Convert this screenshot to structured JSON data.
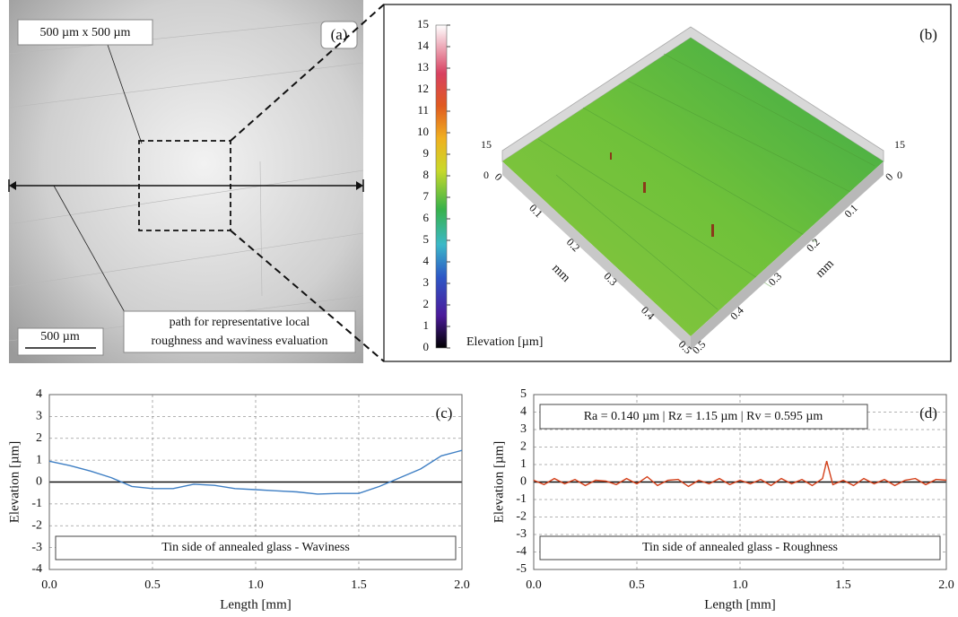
{
  "micrograph": {
    "label": "(a)",
    "area": "500 µm  x 500 µm",
    "path_note": [
      "path for representative local",
      "roughness and waviness evaluation"
    ],
    "scale_bar": "500 µm"
  },
  "surface": {
    "label": "(b)",
    "colorbar": {
      "label": "Elevation [µm]",
      "lim": [
        0,
        15
      ],
      "ticks": [
        0,
        1,
        2,
        3,
        4,
        5,
        6,
        7,
        8,
        9,
        10,
        11,
        12,
        13,
        14,
        15
      ]
    },
    "zlim": [
      0,
      15
    ],
    "zticks": [
      0,
      15
    ],
    "axis_label": "mm",
    "xlim": [
      0,
      0.5
    ],
    "xticks": [
      0,
      0.1,
      0.2,
      0.3,
      0.4,
      0.5
    ],
    "yticks": [
      0,
      0.1,
      0.2,
      0.3,
      0.4,
      0.5
    ]
  },
  "chart_data": [
    {
      "type": "line",
      "label": "(c)",
      "legend_text": "Tin side of annealed glass - Waviness",
      "xlabel": "Length [mm]",
      "ylabel": "Elevation [µm]",
      "xlim": [
        0,
        2
      ],
      "ylim": [
        -4,
        4
      ],
      "xticks": [
        {
          "value": 0,
          "label": "0.0"
        },
        {
          "value": 0.5,
          "label": "0.5"
        },
        {
          "value": 1,
          "label": "1.0"
        },
        {
          "value": 1.5,
          "label": "1.5"
        },
        {
          "value": 2,
          "label": "2.0"
        }
      ],
      "yticks": [
        -4,
        -3,
        -2,
        -1,
        0,
        1,
        2,
        3,
        4
      ],
      "grid": true,
      "series": [
        {
          "color": "#3f7fc4",
          "x": [
            0,
            0.1,
            0.2,
            0.3,
            0.4,
            0.5,
            0.6,
            0.7,
            0.8,
            0.9,
            1.0,
            1.1,
            1.2,
            1.3,
            1.4,
            1.5,
            1.6,
            1.7,
            1.8,
            1.9,
            2.0
          ],
          "values": [
            0.95,
            0.75,
            0.5,
            0.2,
            -0.2,
            -0.3,
            -0.3,
            -0.1,
            -0.15,
            -0.3,
            -0.35,
            -0.4,
            -0.45,
            -0.55,
            -0.52,
            -0.52,
            -0.2,
            0.2,
            0.6,
            1.2,
            1.45
          ]
        }
      ]
    },
    {
      "type": "line",
      "label": "(d)",
      "annotation": "Ra = 0.140 µm  |  Rz = 1.15 µm  |  Rv = 0.595 µm",
      "legend_text": "Tin side of annealed glass - Roughness",
      "xlabel": "Length [mm]",
      "ylabel": "Elevation [µm]",
      "xlim": [
        0,
        2
      ],
      "ylim": [
        -5,
        5
      ],
      "xticks": [
        {
          "value": 0,
          "label": "0.0"
        },
        {
          "value": 0.5,
          "label": "0.5"
        },
        {
          "value": 1,
          "label": "1.0"
        },
        {
          "value": 1.5,
          "label": "1.5"
        },
        {
          "value": 2,
          "label": "2.0"
        }
      ],
      "yticks": [
        -5,
        -4,
        -3,
        -2,
        -1,
        0,
        1,
        2,
        3,
        4,
        5
      ],
      "grid": true,
      "series": [
        {
          "color": "#d4401a",
          "x": [
            0,
            0.05,
            0.1,
            0.15,
            0.2,
            0.25,
            0.3,
            0.35,
            0.4,
            0.45,
            0.5,
            0.55,
            0.6,
            0.65,
            0.7,
            0.75,
            0.8,
            0.85,
            0.9,
            0.95,
            1.0,
            1.05,
            1.1,
            1.15,
            1.2,
            1.25,
            1.3,
            1.35,
            1.4,
            1.42,
            1.45,
            1.5,
            1.55,
            1.6,
            1.65,
            1.7,
            1.75,
            1.8,
            1.85,
            1.9,
            1.95,
            2.0
          ],
          "values": [
            0.1,
            -0.15,
            0.2,
            -0.1,
            0.15,
            -0.2,
            0.1,
            0.05,
            -0.15,
            0.2,
            -0.1,
            0.3,
            -0.2,
            0.1,
            0.15,
            -0.25,
            0.1,
            -0.1,
            0.2,
            -0.15,
            0.1,
            -0.1,
            0.15,
            -0.2,
            0.2,
            -0.1,
            0.15,
            -0.2,
            0.2,
            1.2,
            -0.15,
            0.1,
            -0.2,
            0.2,
            -0.1,
            0.15,
            -0.2,
            0.1,
            0.2,
            -0.15,
            0.15,
            0.1
          ]
        }
      ]
    }
  ]
}
